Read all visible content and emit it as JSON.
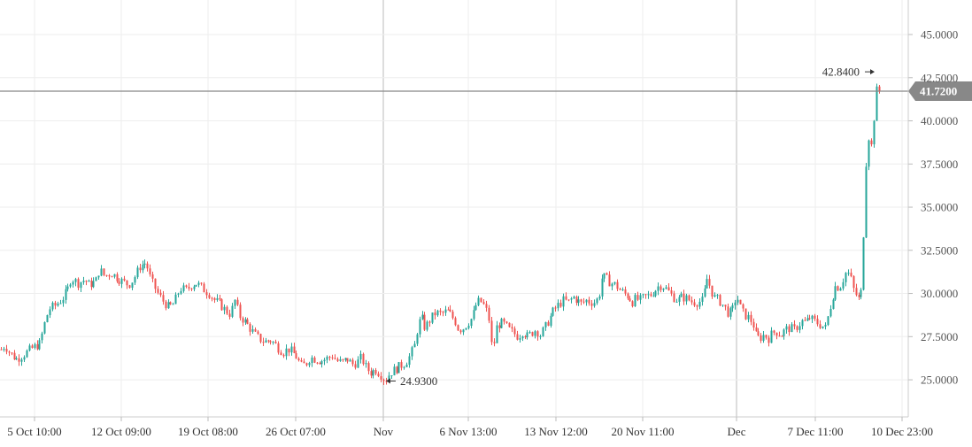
{
  "chart_data": {
    "type": "candlestick",
    "title": "",
    "xlabel": "",
    "ylabel": "",
    "ylim": [
      22.85,
      47.0
    ],
    "yticks": [
      "25.0000",
      "27.5000",
      "30.0000",
      "32.5000",
      "35.0000",
      "37.5000",
      "40.0000",
      "42.5000",
      "45.0000"
    ],
    "xticks": [
      "5 Oct 10:00",
      "12 Oct 09:00",
      "19 Oct 08:00",
      "26 Oct 07:00",
      "Nov",
      "6 Nov 13:00",
      "13 Nov 12:00",
      "20 Nov 11:00",
      "Dec",
      "7 Dec 11:00",
      "10 Dec 23:00"
    ],
    "major_ticks": [
      "Nov",
      "Dec"
    ],
    "last_price": "41.7200",
    "max_label": "42.8400",
    "min_label": "24.9300",
    "colors": {
      "up": "#26a69a",
      "down": "#ef5350",
      "price_line": "#888888",
      "badge": "#888888",
      "grid": "#eeeeee"
    },
    "close_path": [
      [
        0,
        26.7
      ],
      [
        5,
        27.0
      ],
      [
        10,
        26.6
      ],
      [
        18,
        26.2
      ],
      [
        25,
        26.4
      ],
      [
        35,
        26.8
      ],
      [
        45,
        27.1
      ],
      [
        50,
        28.2
      ],
      [
        55,
        29.1
      ],
      [
        62,
        29.3
      ],
      [
        70,
        29.7
      ],
      [
        76,
        30.2
      ],
      [
        80,
        30.9
      ],
      [
        88,
        30.6
      ],
      [
        95,
        30.8
      ],
      [
        100,
        30.5
      ],
      [
        108,
        30.7
      ],
      [
        112,
        31.4
      ],
      [
        118,
        31.0
      ],
      [
        125,
        31.2
      ],
      [
        132,
        30.9
      ],
      [
        138,
        30.7
      ],
      [
        145,
        30.5
      ],
      [
        150,
        30.8
      ],
      [
        158,
        31.6
      ],
      [
        165,
        31.8
      ],
      [
        168,
        31.1
      ],
      [
        172,
        30.6
      ],
      [
        178,
        30.0
      ],
      [
        183,
        29.6
      ],
      [
        190,
        29.2
      ],
      [
        196,
        29.4
      ],
      [
        203,
        30.3
      ],
      [
        210,
        30.2
      ],
      [
        216,
        30.5
      ],
      [
        222,
        30.6
      ],
      [
        228,
        30.3
      ],
      [
        236,
        30.0
      ],
      [
        242,
        29.6
      ],
      [
        248,
        29.4
      ],
      [
        255,
        29.0
      ],
      [
        260,
        28.8
      ],
      [
        265,
        29.6
      ],
      [
        270,
        28.7
      ],
      [
        276,
        28.4
      ],
      [
        282,
        28.0
      ],
      [
        288,
        27.6
      ],
      [
        292,
        27.4
      ],
      [
        298,
        27.2
      ],
      [
        305,
        27.3
      ],
      [
        310,
        27.1
      ],
      [
        315,
        26.8
      ],
      [
        320,
        26.6
      ],
      [
        325,
        26.8
      ],
      [
        330,
        26.6
      ],
      [
        335,
        26.3
      ],
      [
        340,
        25.8
      ],
      [
        345,
        25.9
      ],
      [
        350,
        26.3
      ],
      [
        356,
        26.2
      ],
      [
        362,
        26.1
      ],
      [
        368,
        26.2
      ],
      [
        375,
        26.4
      ],
      [
        380,
        26.1
      ],
      [
        386,
        26.0
      ],
      [
        392,
        26.2
      ],
      [
        398,
        25.9
      ],
      [
        403,
        26.0
      ],
      [
        408,
        26.3
      ],
      [
        412,
        25.8
      ],
      [
        418,
        25.4
      ],
      [
        424,
        25.6
      ],
      [
        430,
        25.3
      ],
      [
        435,
        24.93
      ],
      [
        440,
        25.4
      ],
      [
        446,
        25.6
      ],
      [
        452,
        25.8
      ],
      [
        458,
        26.0
      ],
      [
        463,
        26.4
      ],
      [
        468,
        27.0
      ],
      [
        472,
        28.2
      ],
      [
        476,
        28.6
      ],
      [
        480,
        28.0
      ],
      [
        486,
        28.5
      ],
      [
        492,
        28.9
      ],
      [
        498,
        28.8
      ],
      [
        505,
        29.0
      ],
      [
        510,
        28.7
      ],
      [
        514,
        28.4
      ],
      [
        518,
        27.9
      ],
      [
        523,
        28.0
      ],
      [
        528,
        28.3
      ],
      [
        533,
        28.6
      ],
      [
        538,
        29.4
      ],
      [
        542,
        29.6
      ],
      [
        548,
        29.2
      ],
      [
        552,
        28.5
      ],
      [
        556,
        26.5
      ],
      [
        560,
        28.0
      ],
      [
        565,
        28.3
      ],
      [
        570,
        28.2
      ],
      [
        575,
        27.9
      ],
      [
        580,
        27.7
      ],
      [
        585,
        27.5
      ],
      [
        590,
        27.8
      ],
      [
        596,
        27.5
      ],
      [
        600,
        27.7
      ],
      [
        605,
        27.9
      ],
      [
        610,
        27.6
      ],
      [
        615,
        28.0
      ],
      [
        620,
        28.5
      ],
      [
        625,
        29.0
      ],
      [
        630,
        29.3
      ],
      [
        636,
        29.6
      ],
      [
        642,
        29.5
      ],
      [
        647,
        29.8
      ],
      [
        652,
        29.6
      ],
      [
        657,
        29.4
      ],
      [
        662,
        29.6
      ],
      [
        667,
        29.5
      ],
      [
        672,
        29.5
      ],
      [
        676,
        29.8
      ],
      [
        680,
        31.0
      ],
      [
        684,
        30.9
      ],
      [
        690,
        30.6
      ],
      [
        695,
        30.5
      ],
      [
        700,
        30.2
      ],
      [
        705,
        30.0
      ],
      [
        710,
        29.8
      ],
      [
        714,
        29.5
      ],
      [
        718,
        29.7
      ],
      [
        722,
        29.6
      ],
      [
        728,
        29.8
      ],
      [
        734,
        29.9
      ],
      [
        740,
        30.2
      ],
      [
        745,
        30.5
      ],
      [
        750,
        30.4
      ],
      [
        755,
        30.1
      ],
      [
        760,
        29.8
      ],
      [
        765,
        29.6
      ],
      [
        770,
        29.8
      ],
      [
        776,
        29.7
      ],
      [
        782,
        29.5
      ],
      [
        788,
        29.5
      ],
      [
        794,
        29.6
      ],
      [
        798,
        30.9
      ],
      [
        802,
        30.4
      ],
      [
        806,
        29.8
      ],
      [
        812,
        29.6
      ],
      [
        818,
        29.2
      ],
      [
        823,
        28.8
      ],
      [
        827,
        29.0
      ],
      [
        832,
        29.9
      ],
      [
        836,
        29.2
      ],
      [
        840,
        28.8
      ],
      [
        845,
        28.6
      ],
      [
        850,
        28.3
      ],
      [
        854,
        27.5
      ],
      [
        858,
        27.4
      ],
      [
        863,
        27.6
      ],
      [
        868,
        27.4
      ],
      [
        872,
        27.7
      ],
      [
        876,
        27.8
      ],
      [
        882,
        27.6
      ],
      [
        887,
        27.9
      ],
      [
        892,
        28.0
      ],
      [
        897,
        27.9
      ],
      [
        902,
        28.2
      ],
      [
        906,
        28.4
      ],
      [
        910,
        28.3
      ],
      [
        914,
        28.6
      ],
      [
        920,
        28.4
      ],
      [
        926,
        28.2
      ],
      [
        932,
        28.0
      ],
      [
        936,
        28.9
      ],
      [
        940,
        29.8
      ],
      [
        944,
        30.5
      ],
      [
        948,
        30.3
      ],
      [
        952,
        30.8
      ],
      [
        956,
        31.3
      ],
      [
        960,
        31.0
      ],
      [
        964,
        30.2
      ],
      [
        968,
        29.8
      ],
      [
        972,
        29.5
      ],
      [
        975,
        32.9
      ],
      [
        978,
        37.2
      ],
      [
        980,
        39.8
      ],
      [
        983,
        38.0
      ],
      [
        986,
        39.5
      ],
      [
        989,
        41.6
      ],
      [
        992,
        42.1
      ],
      [
        995,
        41.72
      ]
    ]
  }
}
